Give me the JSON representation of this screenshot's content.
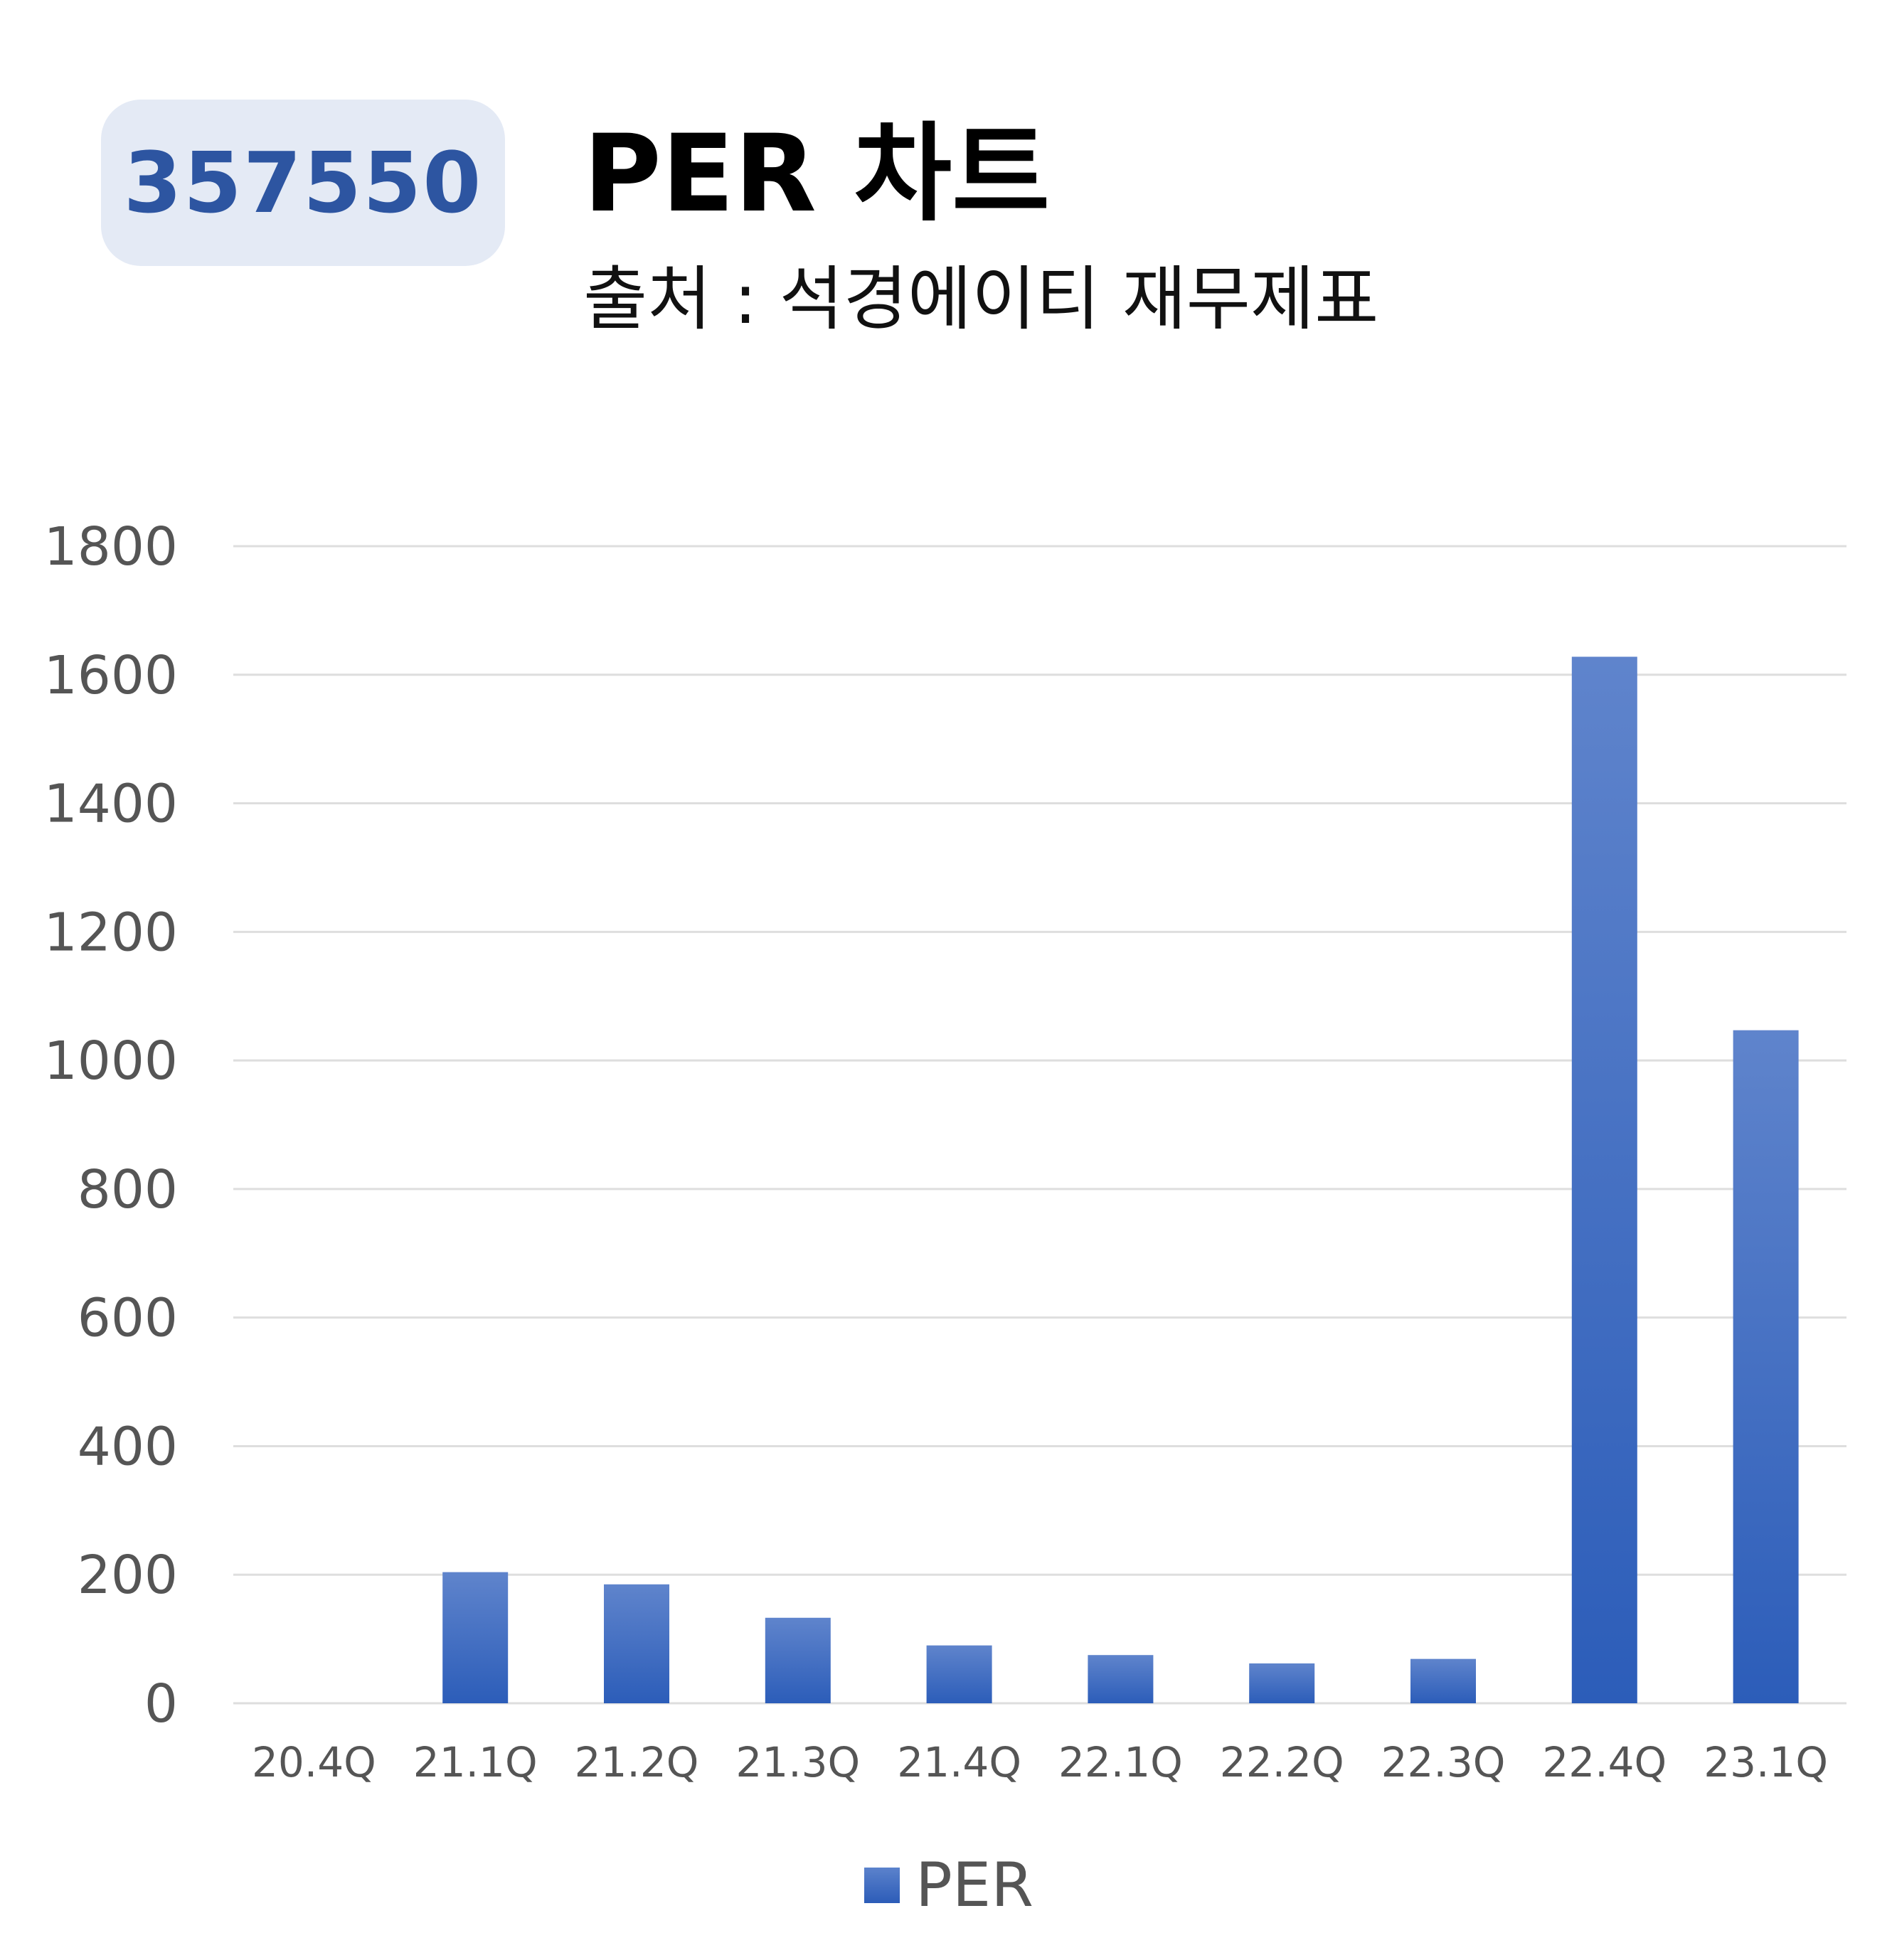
{
  "badge": {
    "code": "357550"
  },
  "header": {
    "title": "PER 차트",
    "subtitle": "출처 : 석경에이티 재무제표"
  },
  "colors": {
    "bar_top": "#5f84cc",
    "bar_bottom": "#2c5db9",
    "badge_bg": "#e4eaf5",
    "badge_text": "#2d55a1",
    "grid": "#dedede",
    "axis_text": "#555555"
  },
  "chart_data": {
    "type": "bar",
    "categories": [
      "20.4Q",
      "21.1Q",
      "21.2Q",
      "21.3Q",
      "21.4Q",
      "22.1Q",
      "22.2Q",
      "22.3Q",
      "22.4Q",
      "23.1Q"
    ],
    "series": [
      {
        "name": "PER",
        "values": [
          0,
          204,
          185,
          133,
          90,
          75,
          62,
          69,
          1628,
          1047
        ]
      }
    ],
    "yticks": [
      "0",
      "200",
      "400",
      "600",
      "800",
      "1000",
      "1200",
      "1400",
      "1600",
      "1800"
    ],
    "ylim": [
      0,
      1800
    ],
    "grid": true,
    "legend": "bottom-center"
  }
}
